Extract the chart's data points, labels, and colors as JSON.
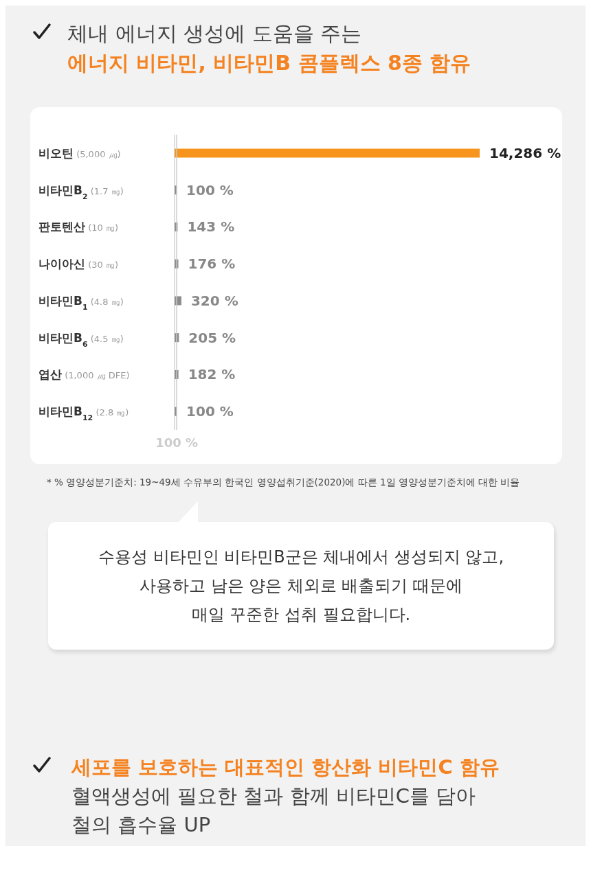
{
  "chart_data": {
    "type": "bar",
    "orientation": "horizontal",
    "title": "체내 에너지 생성에 도움을 주는",
    "subtitle": "에너지 비타민, 비타민B 콤플렉스 8종 함유",
    "categories": [
      "비오틴 (5,000 ㎍)",
      "비타민B$_{2}$ (1.7 ㎎)",
      "판토텐산 (10 ㎎)",
      "나이아신 (30 ㎎)",
      "비타민B$_{1}$ (4.8 ㎎)",
      "비타민B$_{6}$ (4.5 ㎎)",
      "엽산 (1,000 ㎍ DFE)",
      "비타민B$_{12}$ (2.8 ㎎)"
    ],
    "values": [
      14286,
      100,
      143,
      176,
      320,
      205,
      182,
      100
    ],
    "colors": [
      "#f7941d",
      "#8c8c8c",
      "#8c8c8c",
      "#8c8c8c",
      "#8c8c8c",
      "#8c8c8c",
      "#8c8c8c",
      "#8c8c8c"
    ],
    "value_labels": [
      "14,286 %",
      "100 %",
      "143 %",
      "176 %",
      "320 %",
      "205 %",
      "182 %",
      "100 %"
    ],
    "tick_labels": "y",
    "ref_lines": [
      {
        "axis": "x",
        "value": 100,
        "label": "100 %",
        "color": "#cccccc"
      }
    ],
    "annotations": [
      "* % 영양성분기준치: 19~49세 수유부의 한국인 영양섭취기준(2020)에 따른 1일 영양성분기준치에 대한 비율",
      "수용성 비타민인 비타민B군은 체내에서 생성되지 않고,",
      "사용하고 남은 양은 체외로 배출되기 때문에",
      "매일 꾸준한 섭취 필요합니다.",
      "세포를 보호하는 대표적인 항산화 비타민C 함유",
      "혈액생성에 필요한 철과 함께 비타민C를 담아",
      "철의 흡수율 UP"
    ]
  }
}
